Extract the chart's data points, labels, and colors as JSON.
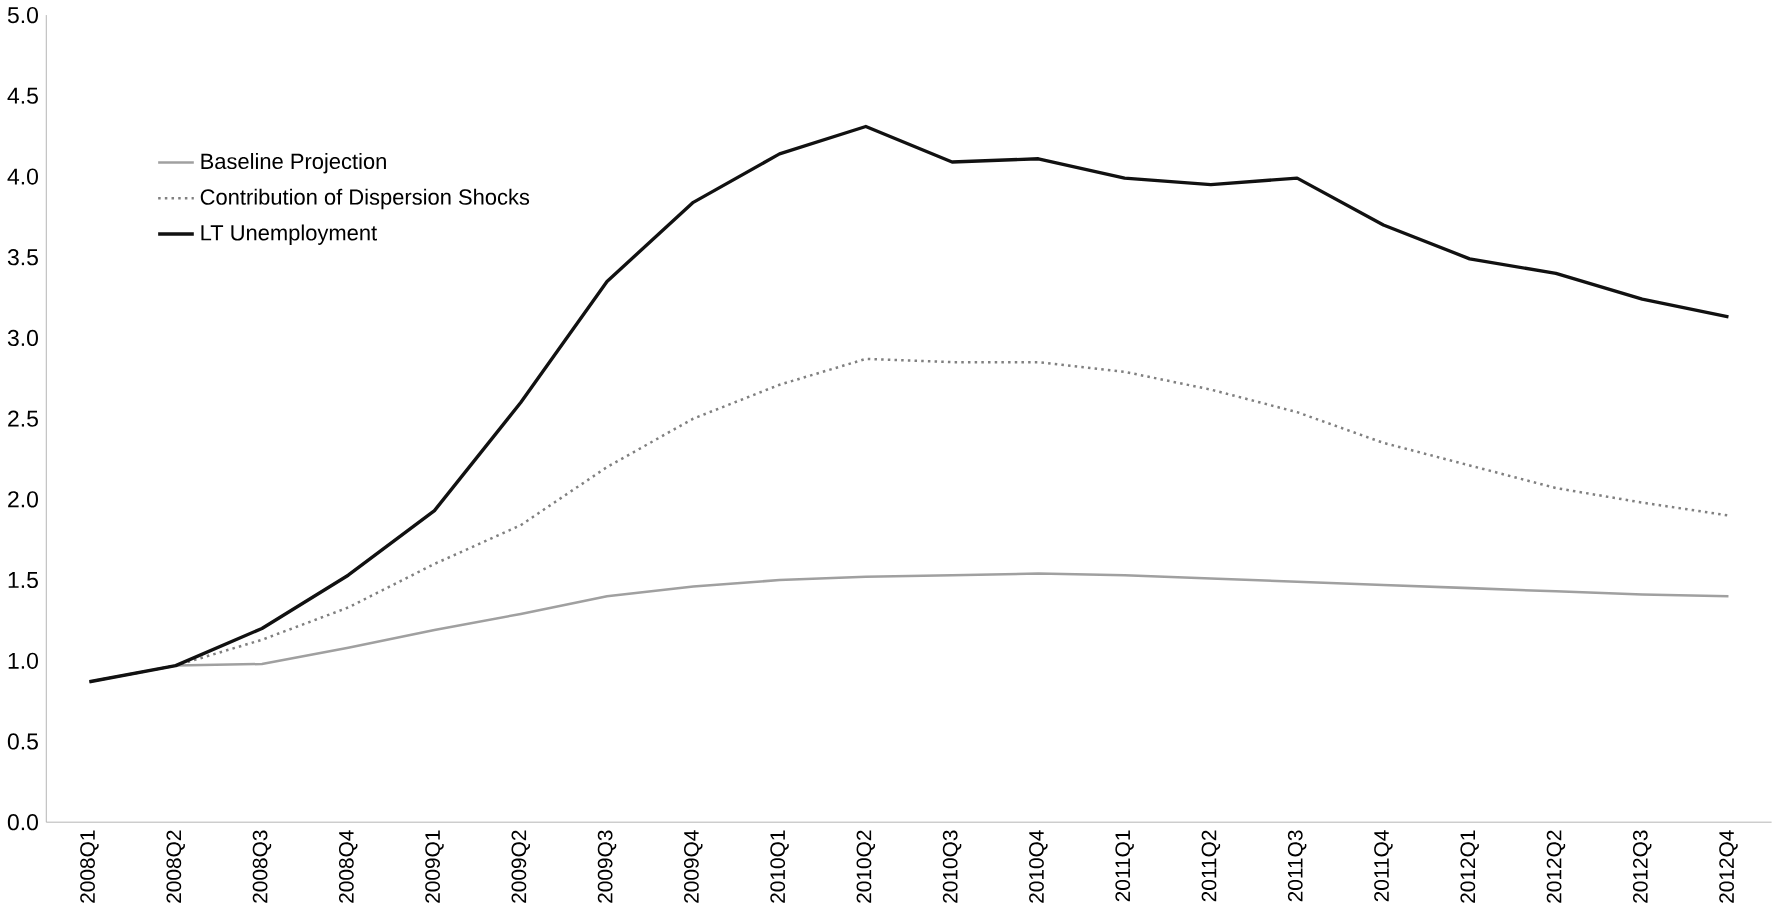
{
  "chart_data": {
    "type": "line",
    "categories": [
      "2008Q1",
      "2008Q2",
      "2008Q3",
      "2008Q4",
      "2009Q1",
      "2009Q2",
      "2009Q3",
      "2009Q4",
      "2010Q1",
      "2010Q2",
      "2010Q3",
      "2010Q4",
      "2011Q1",
      "2011Q2",
      "2011Q3",
      "2011Q4",
      "2012Q1",
      "2012Q2",
      "2012Q3",
      "2012Q4"
    ],
    "series": [
      {
        "name": "Baseline Projection",
        "color": "#a0a0a0",
        "line_style": "solid",
        "values": [
          0.87,
          0.97,
          0.98,
          1.08,
          1.19,
          1.29,
          1.4,
          1.46,
          1.5,
          1.52,
          1.53,
          1.54,
          1.53,
          1.51,
          1.49,
          1.47,
          1.45,
          1.43,
          1.41,
          1.4
        ]
      },
      {
        "name": "Contribution of Dispersion Shocks",
        "color": "#808080",
        "line_style": "dotted",
        "values": [
          0.87,
          0.97,
          1.13,
          1.33,
          1.6,
          1.84,
          2.2,
          2.5,
          2.71,
          2.87,
          2.85,
          2.85,
          2.79,
          2.68,
          2.54,
          2.35,
          2.21,
          2.07,
          1.98,
          1.9
        ]
      },
      {
        "name": "LT Unemployment",
        "color": "#111111",
        "line_style": "solid",
        "values": [
          0.87,
          0.97,
          1.2,
          1.53,
          1.93,
          2.6,
          3.35,
          3.84,
          4.14,
          4.31,
          4.09,
          4.11,
          3.99,
          3.95,
          3.99,
          3.7,
          3.49,
          3.4,
          3.24,
          3.13
        ]
      }
    ],
    "ylim": [
      0,
      5
    ],
    "yticks": [
      {
        "value": 0,
        "label": "0.0"
      },
      0.5,
      {
        "value": 1,
        "label": "1.0"
      },
      1.5,
      {
        "value": 2,
        "label": "2.0"
      },
      2.5,
      {
        "value": 3,
        "label": "3.0"
      },
      3.5,
      {
        "value": 4,
        "label": "4.0"
      },
      4.5,
      {
        "value": 5,
        "label": "5.0"
      }
    ],
    "legend": "top left",
    "marker": "none",
    "grid": false
  }
}
